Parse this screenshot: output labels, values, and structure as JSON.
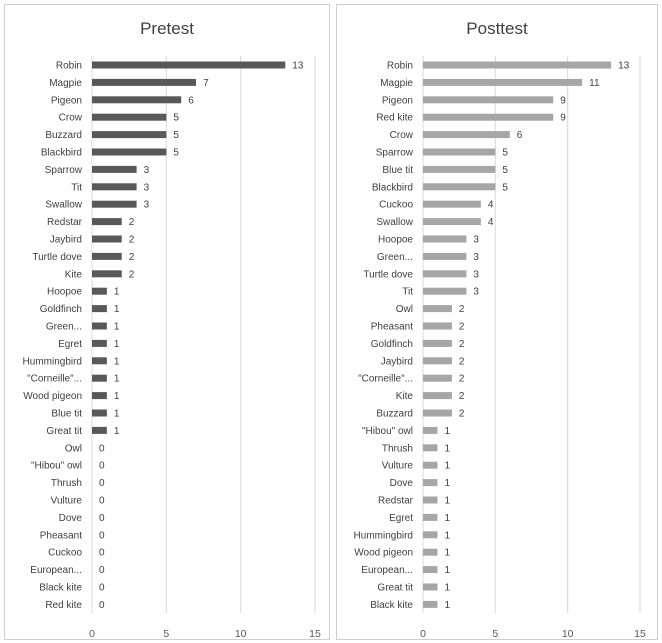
{
  "chart_data": [
    {
      "type": "bar",
      "orientation": "horizontal",
      "title": "Pretest",
      "categories": [
        "Robin",
        "Magpie",
        "Pigeon",
        "Crow",
        "Buzzard",
        "Blackbird",
        "Sparrow",
        "Tit",
        "Swallow",
        "Redstar",
        "Jaybird",
        "Turtle dove",
        "Kite",
        "Hoopoe",
        "Goldfinch",
        "Green...",
        "Egret",
        "Hummingbird",
        "\"Corneille\"...",
        "Wood pigeon",
        "Blue tit",
        "Great tit",
        "Owl",
        "\"Hibou\" owl",
        "Thrush",
        "Vulture",
        "Dove",
        "Pheasant",
        "Cuckoo",
        "European...",
        "Black kite",
        "Red kite"
      ],
      "values": [
        13,
        7,
        6,
        5,
        5,
        5,
        3,
        3,
        3,
        2,
        2,
        2,
        2,
        1,
        1,
        1,
        1,
        1,
        1,
        1,
        1,
        1,
        0,
        0,
        0,
        0,
        0,
        0,
        0,
        0,
        0,
        0
      ],
      "xlim": [
        0,
        15
      ],
      "xticks": [
        0,
        5,
        10,
        15
      ],
      "grid": true,
      "data_labels": true,
      "bar_color": "#595959"
    },
    {
      "type": "bar",
      "orientation": "horizontal",
      "title": "Posttest",
      "categories": [
        "Robin",
        "Magpie",
        "Pigeon",
        "Red kite",
        "Crow",
        "Sparrow",
        "Blue tit",
        "Blackbird",
        "Cuckoo",
        "Swallow",
        "Hoopoe",
        "Green...",
        "Turtle dove",
        "Tit",
        "Owl",
        "Pheasant",
        "Goldfinch",
        "Jaybird",
        "\"Corneille\"...",
        "Kite",
        "Buzzard",
        "\"Hibou\" owl",
        "Thrush",
        "Vulture",
        "Dove",
        "Redstar",
        "Egret",
        "Hummingbird",
        "Wood pigeon",
        "European...",
        "Great tit",
        "Black kite"
      ],
      "values": [
        13,
        11,
        9,
        9,
        6,
        5,
        5,
        5,
        4,
        4,
        3,
        3,
        3,
        3,
        2,
        2,
        2,
        2,
        2,
        2,
        2,
        1,
        1,
        1,
        1,
        1,
        1,
        1,
        1,
        1,
        1,
        1
      ],
      "xlim": [
        0,
        15
      ],
      "xticks": [
        0,
        5,
        10,
        15
      ],
      "grid": true,
      "data_labels": true,
      "bar_color": "#a6a6a6"
    }
  ]
}
